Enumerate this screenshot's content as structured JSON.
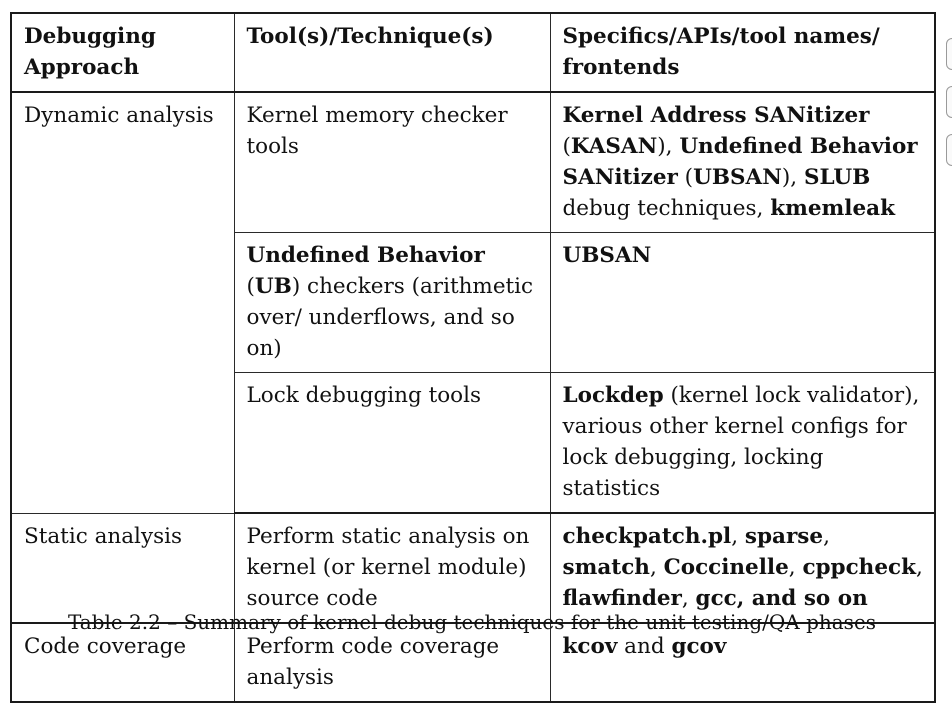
{
  "table": {
    "headers": [
      "Debugging Approach",
      "Tool(s)/Technique(s)",
      "Specifics/APIs/tool names/ frontends"
    ],
    "rows": {
      "memory_checker": {
        "approach": "Dynamic analysis",
        "tool": "Kernel memory checker tools",
        "specifics": {
          "kasan_name": "Kernel Address SANitizer",
          "kasan_abbr_open": " (",
          "kasan_abbr": "KASAN",
          "kasan_abbr_close": "), ",
          "ubsan_name": "Undefined Behavior SANitizer",
          "ubsan_abbr_open": " (",
          "ubsan_abbr": "UBSAN",
          "ubsan_abbr_close": "), ",
          "slub": "SLUB",
          "slub_suffix": " debug techniques, ",
          "kmemleak": "kmemleak"
        }
      },
      "ub_checkers": {
        "tool_bold": "Undefined Behavior",
        "tool_open": " (",
        "tool_abbr": "UB",
        "tool_close": ")",
        "tool_rest": " checkers (arithmetic over/ underflows, and so on)",
        "specifics": "UBSAN"
      },
      "lock_debugging": {
        "tool": "Lock debugging tools",
        "specifics_bold": "Lockdep",
        "specifics_rest": " (kernel lock validator), various other kernel configs for lock debugging, locking statistics"
      },
      "static_analysis": {
        "approach": "Static analysis",
        "tool": "Perform static analysis on kernel (or kernel module) source code",
        "specifics": {
          "checkpatch": "checkpatch.pl",
          "sep1": ", ",
          "sparse": "sparse",
          "sep2": ", ",
          "smatch": "smatch",
          "sep3": ", ",
          "coccinelle": "Coccinelle",
          "sep4": ", ",
          "cppcheck": "cppcheck",
          "sep5": ", ",
          "flawfinder": "flawfinder",
          "sep6": ", ",
          "gcc": "gcc, and so on"
        }
      },
      "code_coverage": {
        "approach": "Code coverage",
        "tool": "Perform code coverage analysis",
        "specifics": {
          "kcov": "kcov",
          "and": " and ",
          "gcov": "gcov"
        }
      }
    }
  },
  "caption": "Table 2.2 – Summary of kernel debug techniques for the unit testing/QA phases"
}
